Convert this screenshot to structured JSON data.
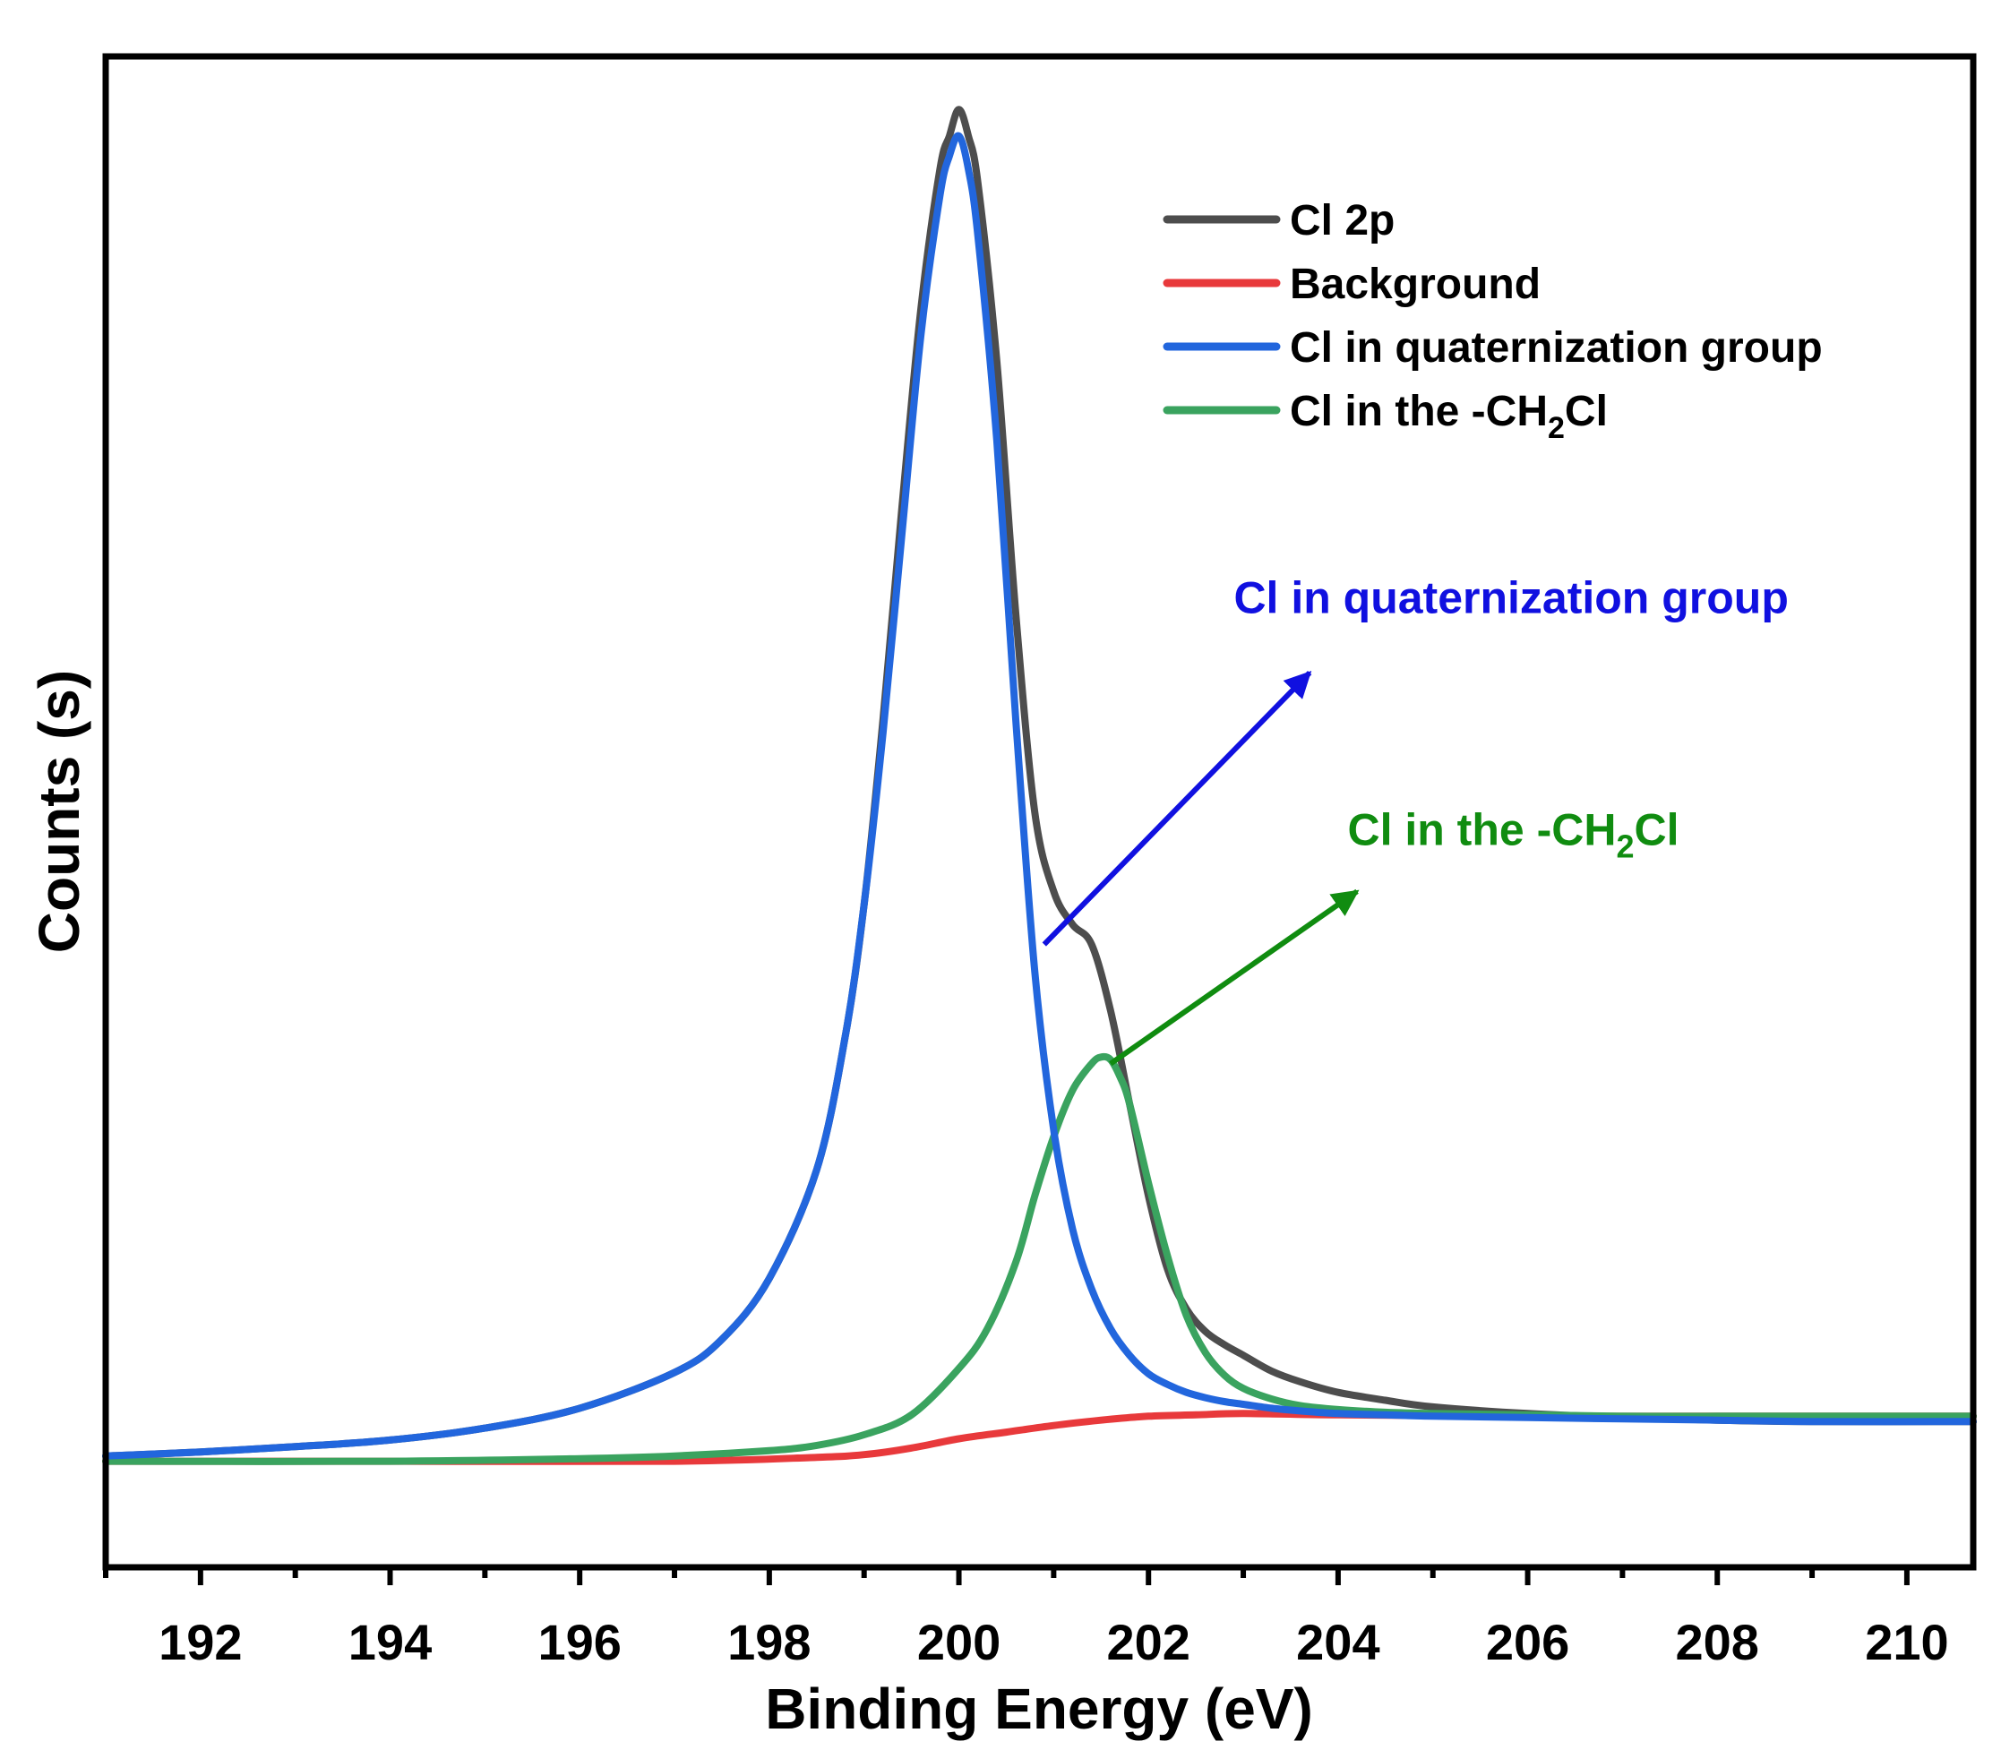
{
  "chart_data": {
    "type": "line",
    "title": "",
    "xlabel": "Binding Energy (eV)",
    "ylabel": "Counts (s)",
    "xlim": [
      191.0,
      210.7
    ],
    "ylim": [
      -0.08,
      1.06
    ],
    "xticks": [
      192,
      194,
      196,
      198,
      200,
      202,
      204,
      206,
      208,
      210
    ],
    "x_minor_step": 1,
    "yticks": [],
    "grid": false,
    "legend_position": "top-right",
    "colors": {
      "cl2p": "#4d4d4d",
      "background": "#e8393b",
      "quaternization": "#2266dd",
      "ch2cl": "#3aa35f",
      "annot_quat": "#1010e0",
      "annot_ch2cl": "#108c10"
    },
    "series": [
      {
        "key": "cl2p",
        "name": "Cl 2p",
        "x": [
          191.0,
          192.0,
          193.0,
          194.0,
          195.0,
          196.0,
          197.0,
          197.5,
          198.0,
          198.5,
          198.8,
          199.0,
          199.2,
          199.4,
          199.6,
          199.8,
          199.9,
          200.0,
          200.1,
          200.2,
          200.4,
          200.6,
          200.8,
          201.0,
          201.2,
          201.4,
          201.6,
          201.8,
          202.0,
          202.2,
          202.4,
          202.6,
          202.8,
          203.0,
          203.3,
          203.6,
          204.0,
          204.5,
          205.0,
          206.0,
          207.0,
          208.0,
          209.0,
          210.7
        ],
        "y": [
          0.004,
          0.007,
          0.011,
          0.016,
          0.025,
          0.04,
          0.067,
          0.092,
          0.138,
          0.22,
          0.32,
          0.42,
          0.56,
          0.72,
          0.87,
          0.975,
          1.0,
          1.02,
          1.0,
          0.965,
          0.83,
          0.64,
          0.49,
          0.43,
          0.405,
          0.39,
          0.34,
          0.27,
          0.2,
          0.145,
          0.115,
          0.098,
          0.088,
          0.08,
          0.068,
          0.06,
          0.052,
          0.046,
          0.041,
          0.036,
          0.033,
          0.031,
          0.03,
          0.03
        ]
      },
      {
        "key": "background",
        "name": "Background",
        "x": [
          191.0,
          194.0,
          197.0,
          198.5,
          199.0,
          199.5,
          200.0,
          200.5,
          201.0,
          201.5,
          202.0,
          202.5,
          203.0,
          204.0,
          206.0,
          208.0,
          210.7
        ],
        "y": [
          0.0,
          0.0,
          0.0,
          0.003,
          0.005,
          0.01,
          0.017,
          0.022,
          0.027,
          0.031,
          0.034,
          0.035,
          0.036,
          0.035,
          0.034,
          0.034,
          0.034
        ]
      },
      {
        "key": "quaternization",
        "name": "Cl in quaternization group",
        "x": [
          191.0,
          192.0,
          193.0,
          194.0,
          195.0,
          196.0,
          197.0,
          197.5,
          198.0,
          198.5,
          198.8,
          199.0,
          199.2,
          199.4,
          199.6,
          199.8,
          199.9,
          200.0,
          200.1,
          200.2,
          200.4,
          200.6,
          200.8,
          201.0,
          201.2,
          201.4,
          201.6,
          201.8,
          202.0,
          202.2,
          202.4,
          202.6,
          202.8,
          203.0,
          203.3,
          203.6,
          204.0,
          204.5,
          205.0,
          206.0,
          207.0,
          208.0,
          209.0,
          210.7
        ],
        "y": [
          0.004,
          0.007,
          0.011,
          0.016,
          0.025,
          0.04,
          0.067,
          0.092,
          0.138,
          0.22,
          0.32,
          0.42,
          0.55,
          0.7,
          0.85,
          0.955,
          0.985,
          1.0,
          0.975,
          0.925,
          0.77,
          0.56,
          0.37,
          0.25,
          0.175,
          0.13,
          0.1,
          0.08,
          0.066,
          0.058,
          0.052,
          0.048,
          0.045,
          0.043,
          0.04,
          0.038,
          0.036,
          0.035,
          0.034,
          0.033,
          0.032,
          0.031,
          0.03,
          0.03
        ]
      },
      {
        "key": "ch2cl",
        "name": "Cl in the -CH2Cl",
        "x": [
          191.0,
          194.0,
          196.0,
          197.0,
          198.0,
          198.5,
          199.0,
          199.5,
          200.0,
          200.3,
          200.6,
          200.8,
          201.0,
          201.2,
          201.4,
          201.5,
          201.6,
          201.7,
          201.8,
          202.0,
          202.2,
          202.4,
          202.6,
          202.8,
          203.0,
          203.3,
          203.6,
          204.0,
          204.5,
          205.0,
          206.0,
          207.0,
          208.0,
          210.7
        ],
        "y": [
          0.0,
          0.0,
          0.002,
          0.004,
          0.008,
          0.012,
          0.02,
          0.035,
          0.07,
          0.1,
          0.15,
          0.2,
          0.245,
          0.28,
          0.3,
          0.305,
          0.303,
          0.29,
          0.27,
          0.21,
          0.155,
          0.11,
          0.082,
          0.065,
          0.055,
          0.047,
          0.042,
          0.039,
          0.037,
          0.036,
          0.035,
          0.034,
          0.034,
          0.034
        ]
      }
    ],
    "legend": [
      {
        "key": "cl2p",
        "label": "Cl 2p"
      },
      {
        "key": "background",
        "label": "Background"
      },
      {
        "key": "quaternization",
        "label": "Cl in quaternization group"
      },
      {
        "key": "ch2cl",
        "label": "Cl in the -CH",
        "subscript": "2",
        "suffix": "Cl"
      }
    ],
    "annotations": [
      {
        "key": "annot_quat",
        "text": "Cl in quaternization group",
        "arrow_from": [
          200.9,
          0.39
        ],
        "arrow_to": [
          203.7,
          0.595
        ],
        "text_at": [
          202.9,
          0.64
        ]
      },
      {
        "key": "annot_ch2cl",
        "text": "Cl in the -CH",
        "subscript": "2",
        "suffix": "Cl",
        "arrow_from": [
          201.6,
          0.3
        ],
        "arrow_to": [
          204.2,
          0.43
        ],
        "text_at": [
          204.1,
          0.465
        ]
      }
    ]
  }
}
